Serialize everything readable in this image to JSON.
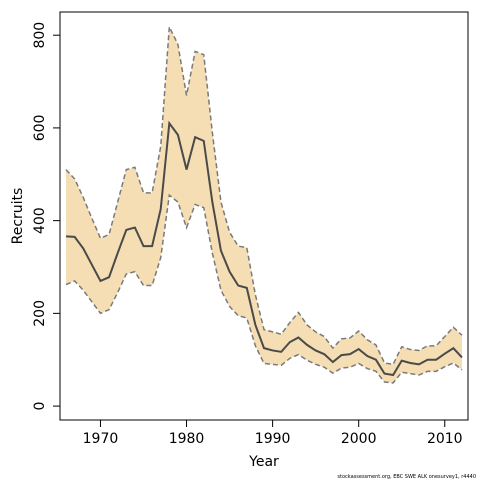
{
  "chart_data": {
    "type": "line",
    "xlabel": "Year",
    "ylabel": "Recruits",
    "xlim": [
      1965.3,
      2012.7
    ],
    "ylim": [
      -30,
      850
    ],
    "x_ticks": [
      1970,
      1980,
      1990,
      2000,
      2010
    ],
    "y_ticks": [
      0,
      200,
      400,
      600,
      800
    ],
    "grid": false,
    "series": [
      {
        "role": "estimate",
        "color": "#4a4a4a",
        "x": [
          1966,
          1967,
          1968,
          1969,
          1970,
          1971,
          1972,
          1973,
          1974,
          1975,
          1976,
          1977,
          1978,
          1979,
          1980,
          1981,
          1982,
          1983,
          1984,
          1985,
          1986,
          1987,
          1988,
          1989,
          1990,
          1991,
          1992,
          1993,
          1994,
          1995,
          1996,
          1997,
          1998,
          1999,
          2000,
          2001,
          2002,
          2003,
          2004,
          2005,
          2006,
          2007,
          2008,
          2009,
          2010,
          2011,
          2012
        ],
        "values": [
          366,
          365,
          340,
          305,
          270,
          278,
          330,
          380,
          385,
          345,
          345,
          425,
          610,
          585,
          510,
          580,
          572,
          440,
          335,
          290,
          260,
          255,
          175,
          125,
          120,
          117,
          138,
          148,
          132,
          120,
          112,
          95,
          110,
          112,
          123,
          108,
          100,
          70,
          67,
          98,
          93,
          90,
          100,
          100,
          113,
          125,
          105
        ]
      },
      {
        "role": "upper-bound",
        "color": "#7a7a7a",
        "x": [
          1966,
          1967,
          1968,
          1969,
          1970,
          1971,
          1972,
          1973,
          1974,
          1975,
          1976,
          1977,
          1978,
          1979,
          1980,
          1981,
          1982,
          1983,
          1984,
          1985,
          1986,
          1987,
          1988,
          1989,
          1990,
          1991,
          1992,
          1993,
          1994,
          1995,
          1996,
          1997,
          1998,
          1999,
          2000,
          2001,
          2002,
          2003,
          2004,
          2005,
          2006,
          2007,
          2008,
          2009,
          2010,
          2011,
          2012
        ],
        "values": [
          510,
          490,
          450,
          405,
          362,
          370,
          440,
          510,
          515,
          460,
          460,
          560,
          818,
          780,
          670,
          765,
          758,
          590,
          440,
          375,
          345,
          342,
          240,
          165,
          160,
          155,
          180,
          202,
          175,
          160,
          150,
          125,
          145,
          147,
          162,
          143,
          132,
          93,
          90,
          128,
          122,
          120,
          130,
          130,
          150,
          170,
          153
        ]
      },
      {
        "role": "lower-bound",
        "color": "#7a7a7a",
        "x": [
          1966,
          1967,
          1968,
          1969,
          1970,
          1971,
          1972,
          1973,
          1974,
          1975,
          1976,
          1977,
          1978,
          1979,
          1980,
          1981,
          1982,
          1983,
          1984,
          1985,
          1986,
          1987,
          1988,
          1989,
          1990,
          1991,
          1992,
          1993,
          1994,
          1995,
          1996,
          1997,
          1998,
          1999,
          2000,
          2001,
          2002,
          2003,
          2004,
          2005,
          2006,
          2007,
          2008,
          2009,
          2010,
          2011,
          2012
        ],
        "values": [
          262,
          270,
          250,
          225,
          200,
          208,
          245,
          285,
          290,
          260,
          260,
          320,
          455,
          440,
          385,
          435,
          428,
          330,
          250,
          215,
          195,
          190,
          130,
          92,
          90,
          88,
          103,
          111,
          99,
          90,
          84,
          71,
          82,
          84,
          92,
          81,
          75,
          52,
          50,
          73,
          70,
          67,
          75,
          75,
          85,
          93,
          78
        ]
      }
    ],
    "band_fill": "#f5deb3",
    "footnote": "stockassessment.org, EBC SWE ALK onesurvey1, r4440"
  }
}
